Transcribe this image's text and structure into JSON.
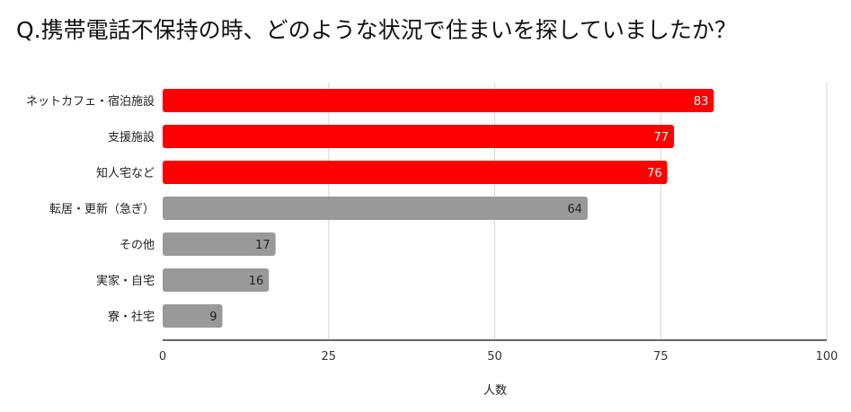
{
  "title": "Q.携帯電話不保持の時、どのような状況で住まいを探していましたか？",
  "chart_data": {
    "type": "bar",
    "orientation": "horizontal",
    "categories": [
      "ネットカフェ・宿泊施設",
      "支援施設",
      "知人宅など",
      "転居・更新（急ぎ）",
      "その他",
      "実家・自宅",
      "寮・社宅"
    ],
    "values": [
      83,
      77,
      76,
      64,
      17,
      16,
      9
    ],
    "bar_colors": [
      "#ff0000",
      "#ff0000",
      "#ff0000",
      "#999999",
      "#999999",
      "#999999",
      "#999999"
    ],
    "label_colors": [
      "#ffffff",
      "#ffffff",
      "#ffffff",
      "#222222",
      "#222222",
      "#222222",
      "#222222"
    ],
    "xlabel": "人数",
    "ylabel": "",
    "xlim": [
      0,
      100
    ],
    "xticks": [
      0,
      25,
      50,
      75,
      100
    ],
    "grid": true,
    "data_labels": true
  }
}
